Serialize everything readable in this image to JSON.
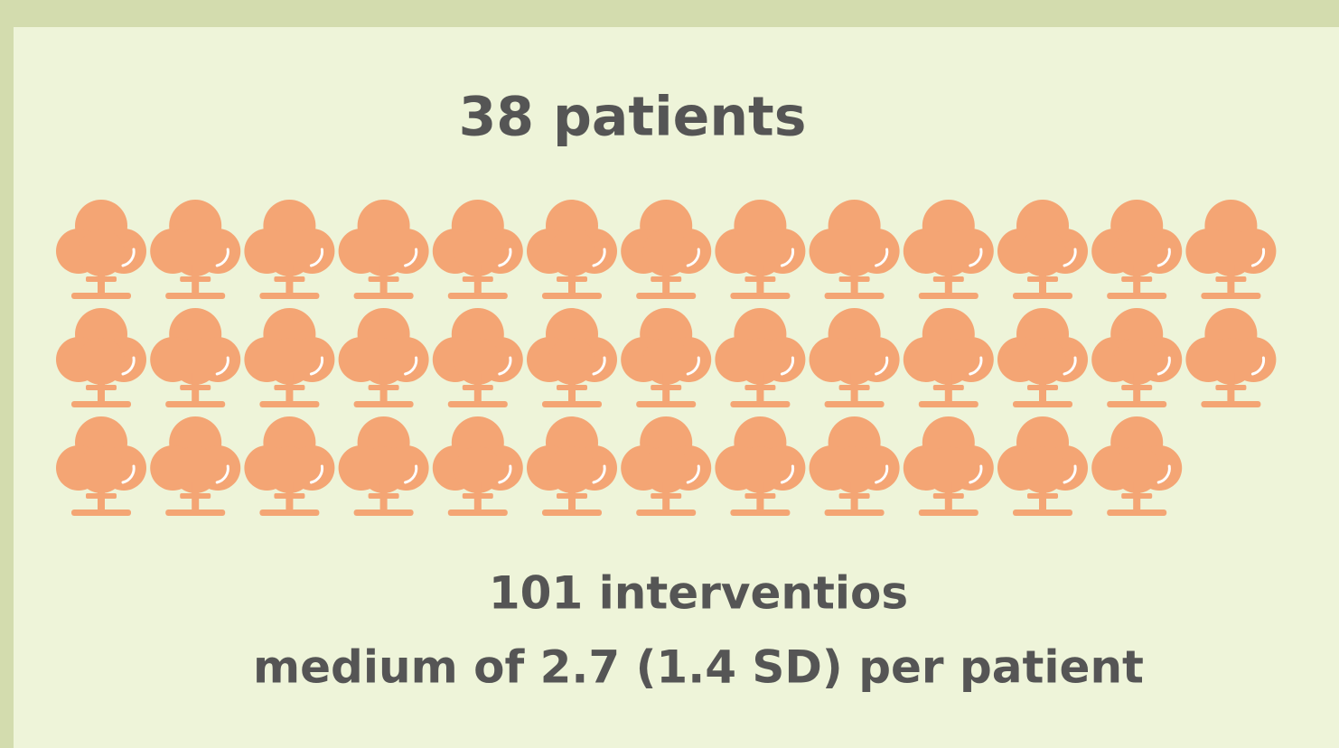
{
  "title": "38 patients",
  "pictogram": {
    "count": 38,
    "color": "#f4a574"
  },
  "caption": [
    "101 interventios",
    "medium of 2.7 (1.4 SD) per patient"
  ]
}
